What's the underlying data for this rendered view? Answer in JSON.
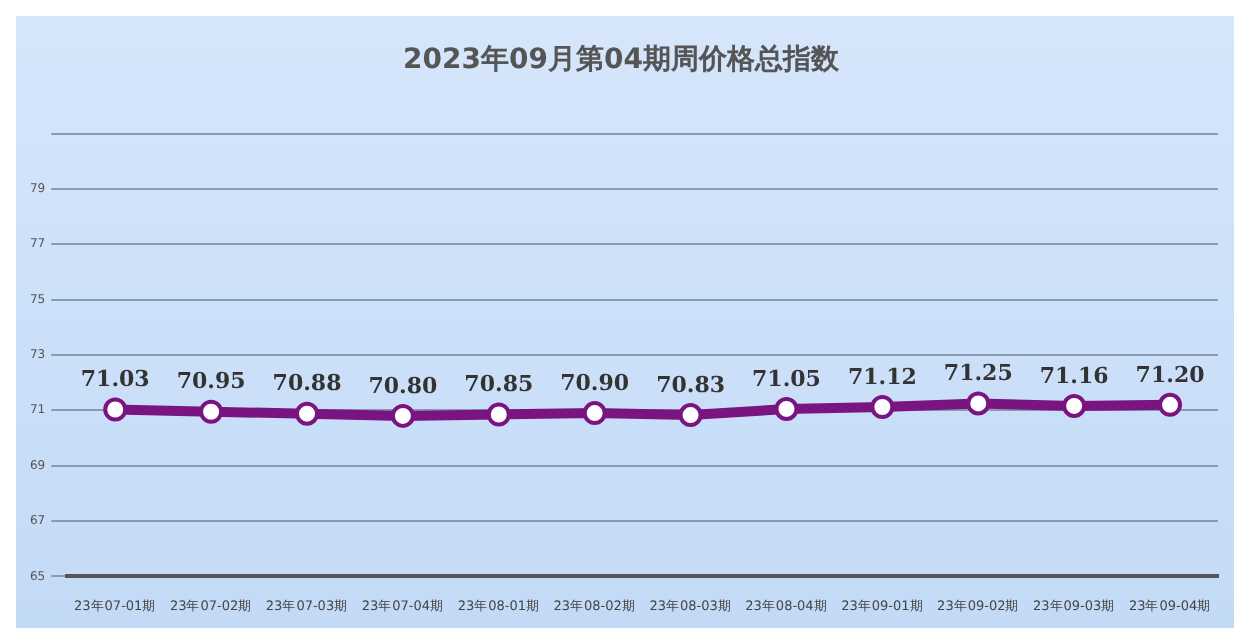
{
  "chart_data": {
    "type": "line",
    "title": "2023年09月第04期周价格总指数",
    "categories": [
      "23年07-01期",
      "23年07-02期",
      "23年07-03期",
      "23年07-04期",
      "23年08-01期",
      "23年08-02期",
      "23年08-03期",
      "23年08-04期",
      "23年09-01期",
      "23年09-02期",
      "23年09-03期",
      "23年09-04期"
    ],
    "series": [
      {
        "color": "#7a1480",
        "values": [
          71.03,
          70.95,
          70.88,
          70.8,
          70.85,
          70.9,
          70.83,
          71.05,
          71.12,
          71.25,
          71.16,
          71.2
        ],
        "value_labels": [
          "71.03",
          "70.95",
          "70.88",
          "70.80",
          "70.85",
          "70.90",
          "70.83",
          "71.05",
          "71.12",
          "71.25",
          "71.16",
          "71.20"
        ]
      }
    ],
    "ylim": [
      65,
      81
    ],
    "yticks": [
      65,
      67,
      69,
      71,
      73,
      75,
      77,
      79,
      {
        "value": 81,
        "label": null
      }
    ],
    "grid": "y",
    "legend": false,
    "marker": "circle",
    "line_style": "solid"
  }
}
